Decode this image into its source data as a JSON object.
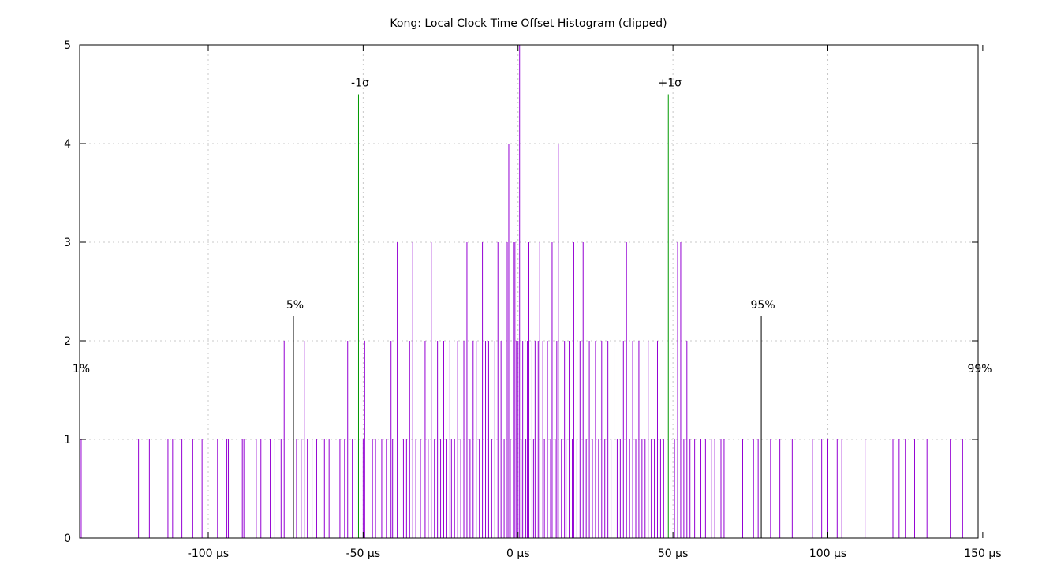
{
  "chart_data": {
    "type": "bar",
    "title": "Kong: Local Clock Time Offset Histogram (clipped)",
    "xlabel": "",
    "ylabel": "",
    "x_unit": "µs",
    "xlim": [
      -141.5,
      148.5
    ],
    "ylim": [
      0,
      5
    ],
    "grid": true,
    "x_tick_labels": [
      {
        "value": -100,
        "label": "-100 µs"
      },
      {
        "value": -50,
        "label": "-50 µs"
      },
      {
        "value": 0,
        "label": "0 µs"
      },
      {
        "value": 50,
        "label": "50 µs"
      },
      {
        "value": 100,
        "label": "100 µs"
      },
      {
        "value": 150,
        "label": "150 µs"
      }
    ],
    "y_tick_labels": [
      {
        "value": 0,
        "label": "0"
      },
      {
        "value": 1,
        "label": "1"
      },
      {
        "value": 2,
        "label": "2"
      },
      {
        "value": 3,
        "label": "3"
      },
      {
        "value": 4,
        "label": "4"
      },
      {
        "value": 5,
        "label": "5"
      }
    ],
    "series_color": "#9400d3",
    "sigma_color": "#009900",
    "percentile_color": "#000000",
    "markers": [
      {
        "label": "1%",
        "x": -141.5,
        "height": 1.6,
        "kind": "percentile"
      },
      {
        "label": "5%",
        "x": -72.5,
        "height": 2.25,
        "kind": "percentile"
      },
      {
        "label": "-1σ",
        "x": -51.5,
        "height": 4.5,
        "kind": "sigma"
      },
      {
        "label": "+1σ",
        "x": 48.5,
        "height": 4.5,
        "kind": "sigma"
      },
      {
        "label": "95%",
        "x": 78.5,
        "height": 2.25,
        "kind": "percentile"
      },
      {
        "label": "99%",
        "x": 148.5,
        "height": 1.6,
        "kind": "percentile"
      }
    ],
    "bars": [
      [
        -141,
        1
      ],
      [
        -122.5,
        1
      ],
      [
        -119,
        1
      ],
      [
        -113,
        1
      ],
      [
        -111.5,
        1
      ],
      [
        -108.5,
        1
      ],
      [
        -105,
        1
      ],
      [
        -102,
        1
      ],
      [
        -97,
        1
      ],
      [
        -94,
        1
      ],
      [
        -93.5,
        1
      ],
      [
        -89,
        1
      ],
      [
        -88.5,
        1
      ],
      [
        -84.5,
        1
      ],
      [
        -83,
        1
      ],
      [
        -80,
        1
      ],
      [
        -78.5,
        1
      ],
      [
        -76.5,
        1
      ],
      [
        -75.5,
        2
      ],
      [
        -71.5,
        1
      ],
      [
        -70,
        1
      ],
      [
        -69,
        2
      ],
      [
        -68,
        1
      ],
      [
        -66.5,
        1
      ],
      [
        -65,
        1
      ],
      [
        -62.5,
        1
      ],
      [
        -61,
        1
      ],
      [
        -57.5,
        1
      ],
      [
        -56,
        1
      ],
      [
        -55,
        2
      ],
      [
        -53.5,
        1
      ],
      [
        -52,
        1
      ],
      [
        -50,
        1
      ],
      [
        -49.5,
        2
      ],
      [
        -47,
        1
      ],
      [
        -46,
        1
      ],
      [
        -44,
        1
      ],
      [
        -42.5,
        1
      ],
      [
        -41,
        2
      ],
      [
        -40.5,
        1
      ],
      [
        -39,
        3
      ],
      [
        -37,
        1
      ],
      [
        -36,
        1
      ],
      [
        -35,
        2
      ],
      [
        -34,
        3
      ],
      [
        -33,
        1
      ],
      [
        -31.5,
        1
      ],
      [
        -30,
        2
      ],
      [
        -29,
        1
      ],
      [
        -28,
        3
      ],
      [
        -27,
        1
      ],
      [
        -26,
        2
      ],
      [
        -25,
        1
      ],
      [
        -24,
        2
      ],
      [
        -23,
        1
      ],
      [
        -22,
        2
      ],
      [
        -21.5,
        1
      ],
      [
        -20.5,
        1
      ],
      [
        -19.5,
        2
      ],
      [
        -18.5,
        1
      ],
      [
        -17.5,
        2
      ],
      [
        -16.5,
        3
      ],
      [
        -15.5,
        1
      ],
      [
        -14.5,
        2
      ],
      [
        -13.5,
        2
      ],
      [
        -12.5,
        1
      ],
      [
        -11.5,
        3
      ],
      [
        -10.5,
        2
      ],
      [
        -9.5,
        2
      ],
      [
        -8.5,
        1
      ],
      [
        -7.5,
        2
      ],
      [
        -6.5,
        3
      ],
      [
        -5.5,
        2
      ],
      [
        -4.5,
        1
      ],
      [
        -3.5,
        3
      ],
      [
        -3,
        4
      ],
      [
        -2.5,
        1
      ],
      [
        -1.5,
        3
      ],
      [
        -1,
        3
      ],
      [
        -0.5,
        2
      ],
      [
        0,
        2
      ],
      [
        0.5,
        5
      ],
      [
        1,
        1
      ],
      [
        1.5,
        2
      ],
      [
        2.5,
        1
      ],
      [
        3,
        2
      ],
      [
        3.5,
        3
      ],
      [
        4.5,
        2
      ],
      [
        5,
        1
      ],
      [
        5.5,
        2
      ],
      [
        6.5,
        2
      ],
      [
        7,
        3
      ],
      [
        8,
        2
      ],
      [
        8.5,
        1
      ],
      [
        9.5,
        2
      ],
      [
        10.5,
        1
      ],
      [
        11,
        3
      ],
      [
        12,
        1
      ],
      [
        12.5,
        2
      ],
      [
        13,
        4
      ],
      [
        14,
        1
      ],
      [
        15,
        2
      ],
      [
        15.5,
        1
      ],
      [
        16.5,
        2
      ],
      [
        17.5,
        1
      ],
      [
        18,
        3
      ],
      [
        19,
        1
      ],
      [
        20,
        2
      ],
      [
        21,
        3
      ],
      [
        22,
        1
      ],
      [
        23,
        2
      ],
      [
        24,
        1
      ],
      [
        25,
        2
      ],
      [
        26,
        1
      ],
      [
        27,
        2
      ],
      [
        28,
        1
      ],
      [
        29,
        2
      ],
      [
        30,
        1
      ],
      [
        31,
        2
      ],
      [
        32,
        1
      ],
      [
        33,
        1
      ],
      [
        34,
        2
      ],
      [
        35,
        3
      ],
      [
        36,
        1
      ],
      [
        37,
        2
      ],
      [
        38,
        1
      ],
      [
        39,
        2
      ],
      [
        40,
        1
      ],
      [
        41,
        1
      ],
      [
        42,
        2
      ],
      [
        43,
        1
      ],
      [
        44,
        1
      ],
      [
        45,
        2
      ],
      [
        46,
        1
      ],
      [
        47,
        1
      ],
      [
        50.5,
        1
      ],
      [
        51.5,
        3
      ],
      [
        52.5,
        3
      ],
      [
        53.5,
        1
      ],
      [
        54.5,
        2
      ],
      [
        55.5,
        1
      ],
      [
        57,
        1
      ],
      [
        59,
        1
      ],
      [
        60.5,
        1
      ],
      [
        62.5,
        1
      ],
      [
        63.5,
        1
      ],
      [
        65.5,
        1
      ],
      [
        66.5,
        1
      ],
      [
        72.5,
        1
      ],
      [
        76,
        1
      ],
      [
        77.5,
        1
      ],
      [
        81.5,
        1
      ],
      [
        84.5,
        1
      ],
      [
        86.5,
        1
      ],
      [
        88.5,
        1
      ],
      [
        95,
        1
      ],
      [
        98,
        1
      ],
      [
        100,
        1
      ],
      [
        103,
        1
      ],
      [
        104.5,
        1
      ],
      [
        112,
        1
      ],
      [
        121,
        1
      ],
      [
        123,
        1
      ],
      [
        125,
        1
      ],
      [
        128,
        1
      ],
      [
        132,
        1
      ],
      [
        139.5,
        1
      ],
      [
        143.5,
        1
      ]
    ]
  }
}
